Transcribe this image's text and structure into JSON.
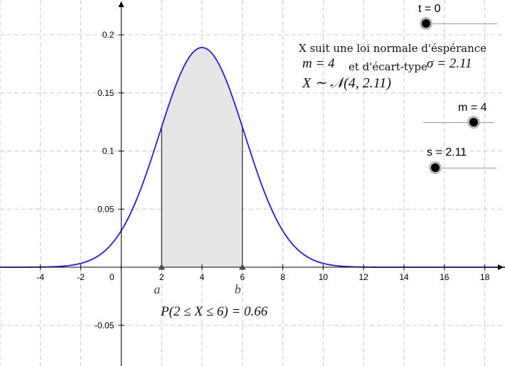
{
  "graph": {
    "x_ticks": [
      "-4",
      "-2",
      "0",
      "2",
      "4",
      "6",
      "8",
      "10",
      "12",
      "14",
      "16",
      "18"
    ],
    "y_ticks": [
      "0.2",
      "0.15",
      "0.1",
      "0.05",
      "-0.05"
    ],
    "point_labels": {
      "a": "a",
      "b": "b"
    },
    "curve_color": "#1f1fe0",
    "shade_color": "#e6e6e6",
    "grid_color": "#c8c8c8"
  },
  "annotation": {
    "line1": "X suit une loi normale d'éspérance",
    "m_expr": "m = 4",
    "mid_text": "et d'écart-type",
    "sigma_expr": "σ = 2.11",
    "dist_expr": "X ∼ 𝒩(4, 2.11)",
    "prob_expr": "P(2 ≤ X ≤ 6) = 0.66"
  },
  "sliders": {
    "t": {
      "label": "t = 0",
      "value": 0
    },
    "m": {
      "label": "m = 4",
      "value": 4
    },
    "s": {
      "label": "s = 2.11",
      "value": 2.11
    }
  },
  "chart_data": {
    "type": "line",
    "title": "",
    "xlabel": "",
    "ylabel": "",
    "xlim": [
      -6,
      19
    ],
    "ylim": [
      -0.085,
      0.23
    ],
    "mean": 4,
    "sd": 2.11,
    "shaded_interval": [
      2,
      6
    ],
    "probability": 0.66,
    "series": [
      {
        "x": [
          -6,
          -4,
          -2,
          0,
          2,
          4,
          6,
          8,
          10,
          12,
          14,
          16,
          18
        ],
        "values": [
          0.0,
          0.0001,
          0.0016,
          0.0313,
          0.1211,
          0.1891,
          0.1211,
          0.0313,
          0.0016,
          0.0001,
          0.0,
          0.0,
          0.0
        ]
      }
    ]
  }
}
